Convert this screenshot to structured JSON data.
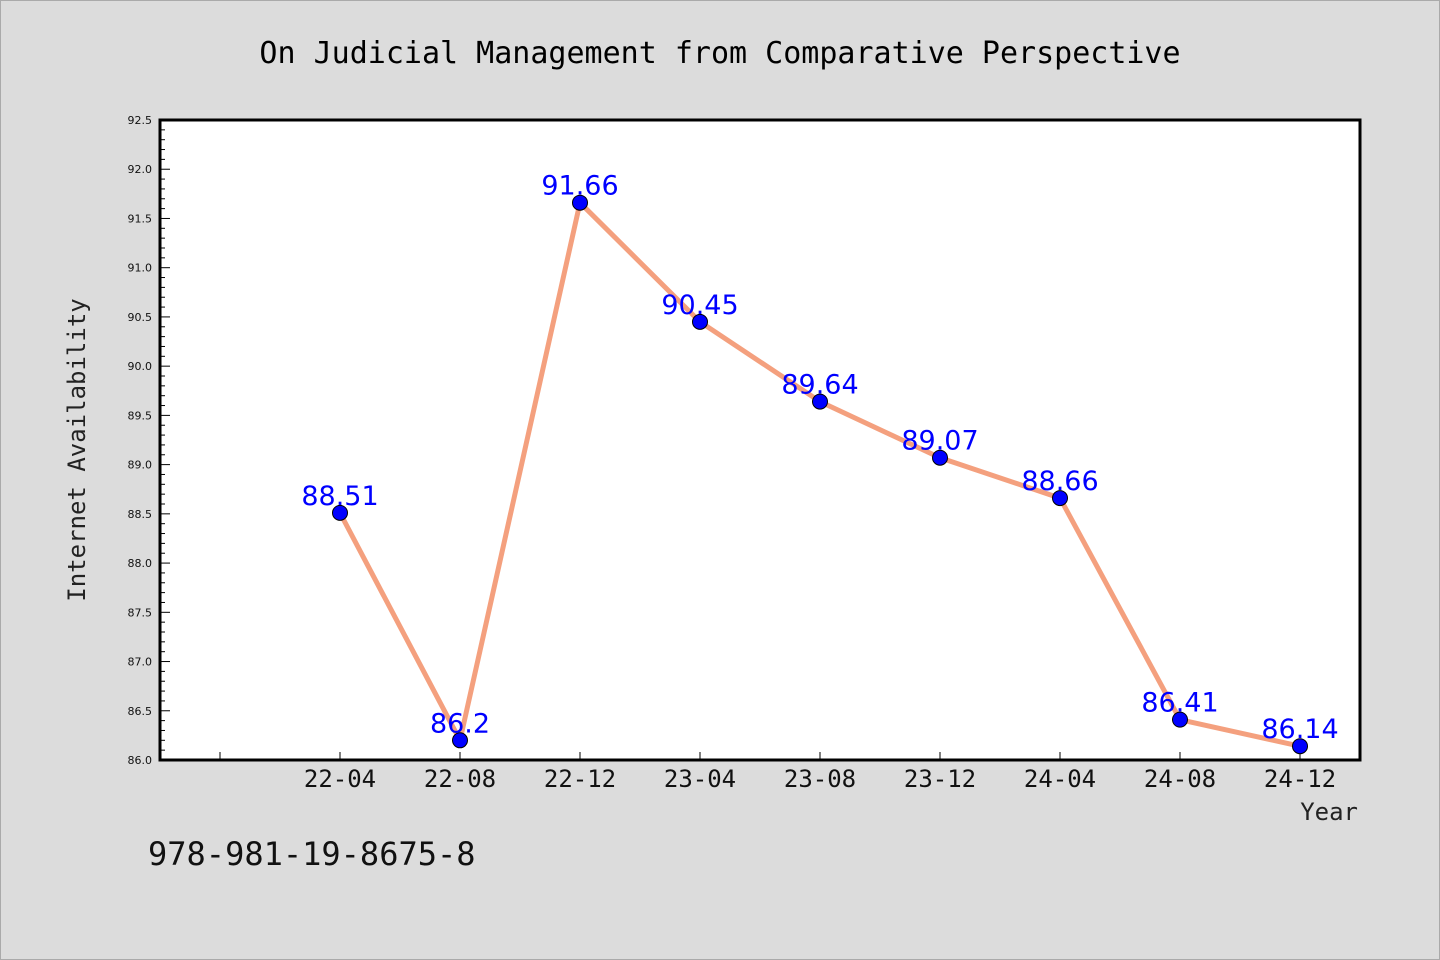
{
  "chart_data": {
    "type": "line",
    "title": "On Judicial Management from Comparative Perspective",
    "xlabel": "Year",
    "ylabel": "Internet Availability",
    "categories": [
      "22-04",
      "22-08",
      "22-12",
      "23-04",
      "23-08",
      "23-12",
      "24-04",
      "24-08",
      "24-12"
    ],
    "series": [
      {
        "values": [
          88.51,
          86.2,
          91.66,
          90.45,
          89.64,
          89.07,
          88.66,
          86.41,
          86.14
        ],
        "labels": [
          "88.51",
          "86.2",
          "91.66",
          "90.45",
          "89.64",
          "89.07",
          "88.66",
          "86.41",
          "86.14"
        ],
        "line_color": "#f4a07e",
        "marker_color": "#0000ff"
      }
    ],
    "ylim": [
      86.0,
      92.5
    ],
    "yticks": [
      "86.0",
      "86.5",
      "87.0",
      "87.5",
      "88.0",
      "88.5",
      "89.0",
      "89.5",
      "90.0",
      "90.5",
      "91.0",
      "91.5",
      "92.0",
      "92.5"
    ],
    "grid": false,
    "legend": "none"
  },
  "footnote": "978-981-19-8675-8",
  "colors": {
    "background": "#dcdcdc",
    "plot_background": "#ffffff",
    "data_label": "#0000ff"
  }
}
